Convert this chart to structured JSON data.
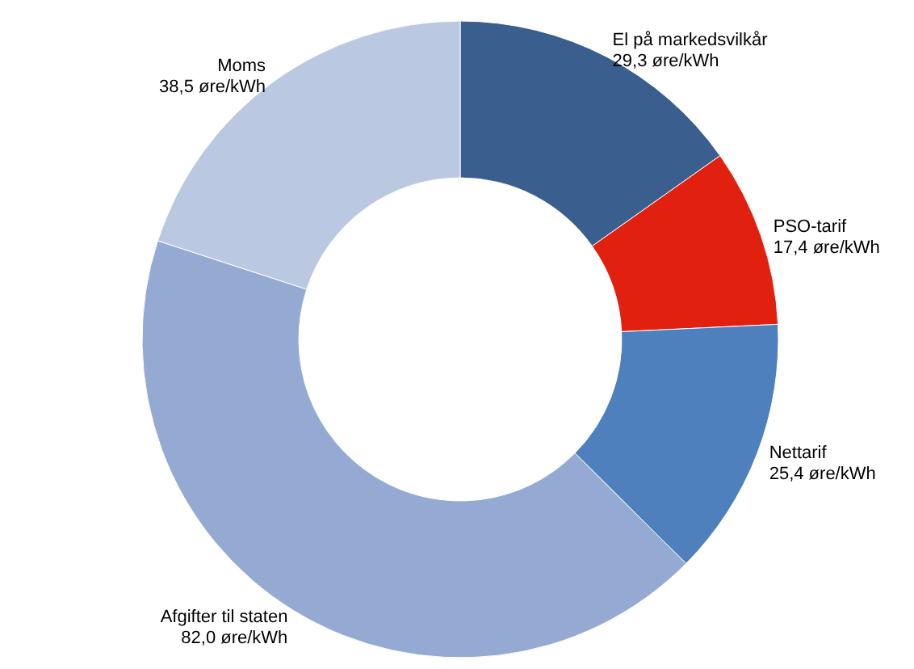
{
  "chart_data": {
    "type": "donut",
    "categories": [
      "El på markedsvilkår",
      "PSO-tarif",
      "Nettarif",
      "Afgifter til staten",
      "Moms"
    ],
    "values": [
      29.3,
      17.4,
      25.4,
      82.0,
      38.5
    ],
    "colors": [
      "#3a5f8f",
      "#e2200f",
      "#4e80bd",
      "#95aad3",
      "#bac8e2"
    ],
    "value_labels": [
      "29,3 øre/kWh",
      "17,4 øre/kWh",
      "25,4 øre/kWh",
      "82,0 øre/kWh",
      "38,5 øre/kWh"
    ]
  }
}
